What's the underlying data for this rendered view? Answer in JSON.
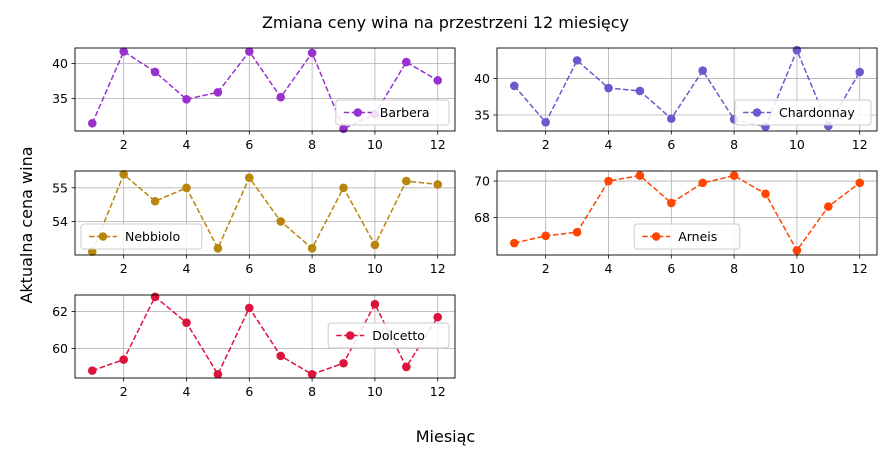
{
  "figure": {
    "title": "Zmiana ceny wina na przestrzeni 12 miesięcy",
    "xlabel": "Miesiąc",
    "ylabel": "Aktualna cena wina"
  },
  "chart_data": [
    {
      "type": "line",
      "name": "Barbera",
      "color": "#9932CC",
      "x": [
        1,
        2,
        3,
        4,
        5,
        6,
        7,
        8,
        9,
        10,
        11,
        12
      ],
      "values": [
        31.5,
        41.7,
        38.8,
        34.9,
        35.9,
        41.7,
        35.2,
        41.5,
        30.7,
        32.8,
        40.2,
        37.6
      ],
      "ylim": [
        30.4,
        42.2
      ],
      "yticks": [
        35,
        40
      ],
      "legend": "lower-right",
      "grid": true
    },
    {
      "type": "line",
      "name": "Chardonnay",
      "color": "#6A5ACD",
      "x": [
        1,
        2,
        3,
        4,
        5,
        6,
        7,
        8,
        9,
        10,
        11,
        12
      ],
      "values": [
        39.0,
        34.0,
        42.5,
        38.7,
        38.3,
        34.5,
        41.1,
        34.4,
        33.4,
        43.9,
        33.5,
        40.9
      ],
      "ylim": [
        32.8,
        44.2
      ],
      "yticks": [
        35,
        40
      ],
      "legend": "lower-right",
      "grid": true
    },
    {
      "type": "line",
      "name": "Nebbiolo",
      "color": "#B8860B",
      "x": [
        1,
        2,
        3,
        4,
        5,
        6,
        7,
        8,
        9,
        10,
        11,
        12
      ],
      "values": [
        53.1,
        55.4,
        54.6,
        55.0,
        53.2,
        55.3,
        54.0,
        53.2,
        55.0,
        53.3,
        55.2,
        55.1
      ],
      "ylim": [
        53.0,
        55.5
      ],
      "yticks": [
        54,
        55
      ],
      "legend": "lower-left",
      "grid": true
    },
    {
      "type": "line",
      "name": "Arneis",
      "color": "#FF4500",
      "x": [
        1,
        2,
        3,
        4,
        5,
        6,
        7,
        8,
        9,
        10,
        11,
        12
      ],
      "values": [
        66.6,
        67.0,
        67.2,
        70.0,
        70.3,
        68.8,
        69.9,
        70.3,
        69.3,
        66.2,
        68.6,
        69.9
      ],
      "ylim": [
        65.95,
        70.55
      ],
      "yticks": [
        68,
        70
      ],
      "legend": "lower-center",
      "grid": true
    },
    {
      "type": "line",
      "name": "Dolcetto",
      "color": "#DC143C",
      "x": [
        1,
        2,
        3,
        4,
        5,
        6,
        7,
        8,
        9,
        10,
        11,
        12
      ],
      "values": [
        58.8,
        59.4,
        62.8,
        61.4,
        58.6,
        62.2,
        59.6,
        58.6,
        59.2,
        62.4,
        59.0,
        61.7
      ],
      "ylim": [
        58.4,
        62.9
      ],
      "yticks": [
        60,
        62
      ],
      "legend": "upper-right",
      "grid": true
    }
  ]
}
